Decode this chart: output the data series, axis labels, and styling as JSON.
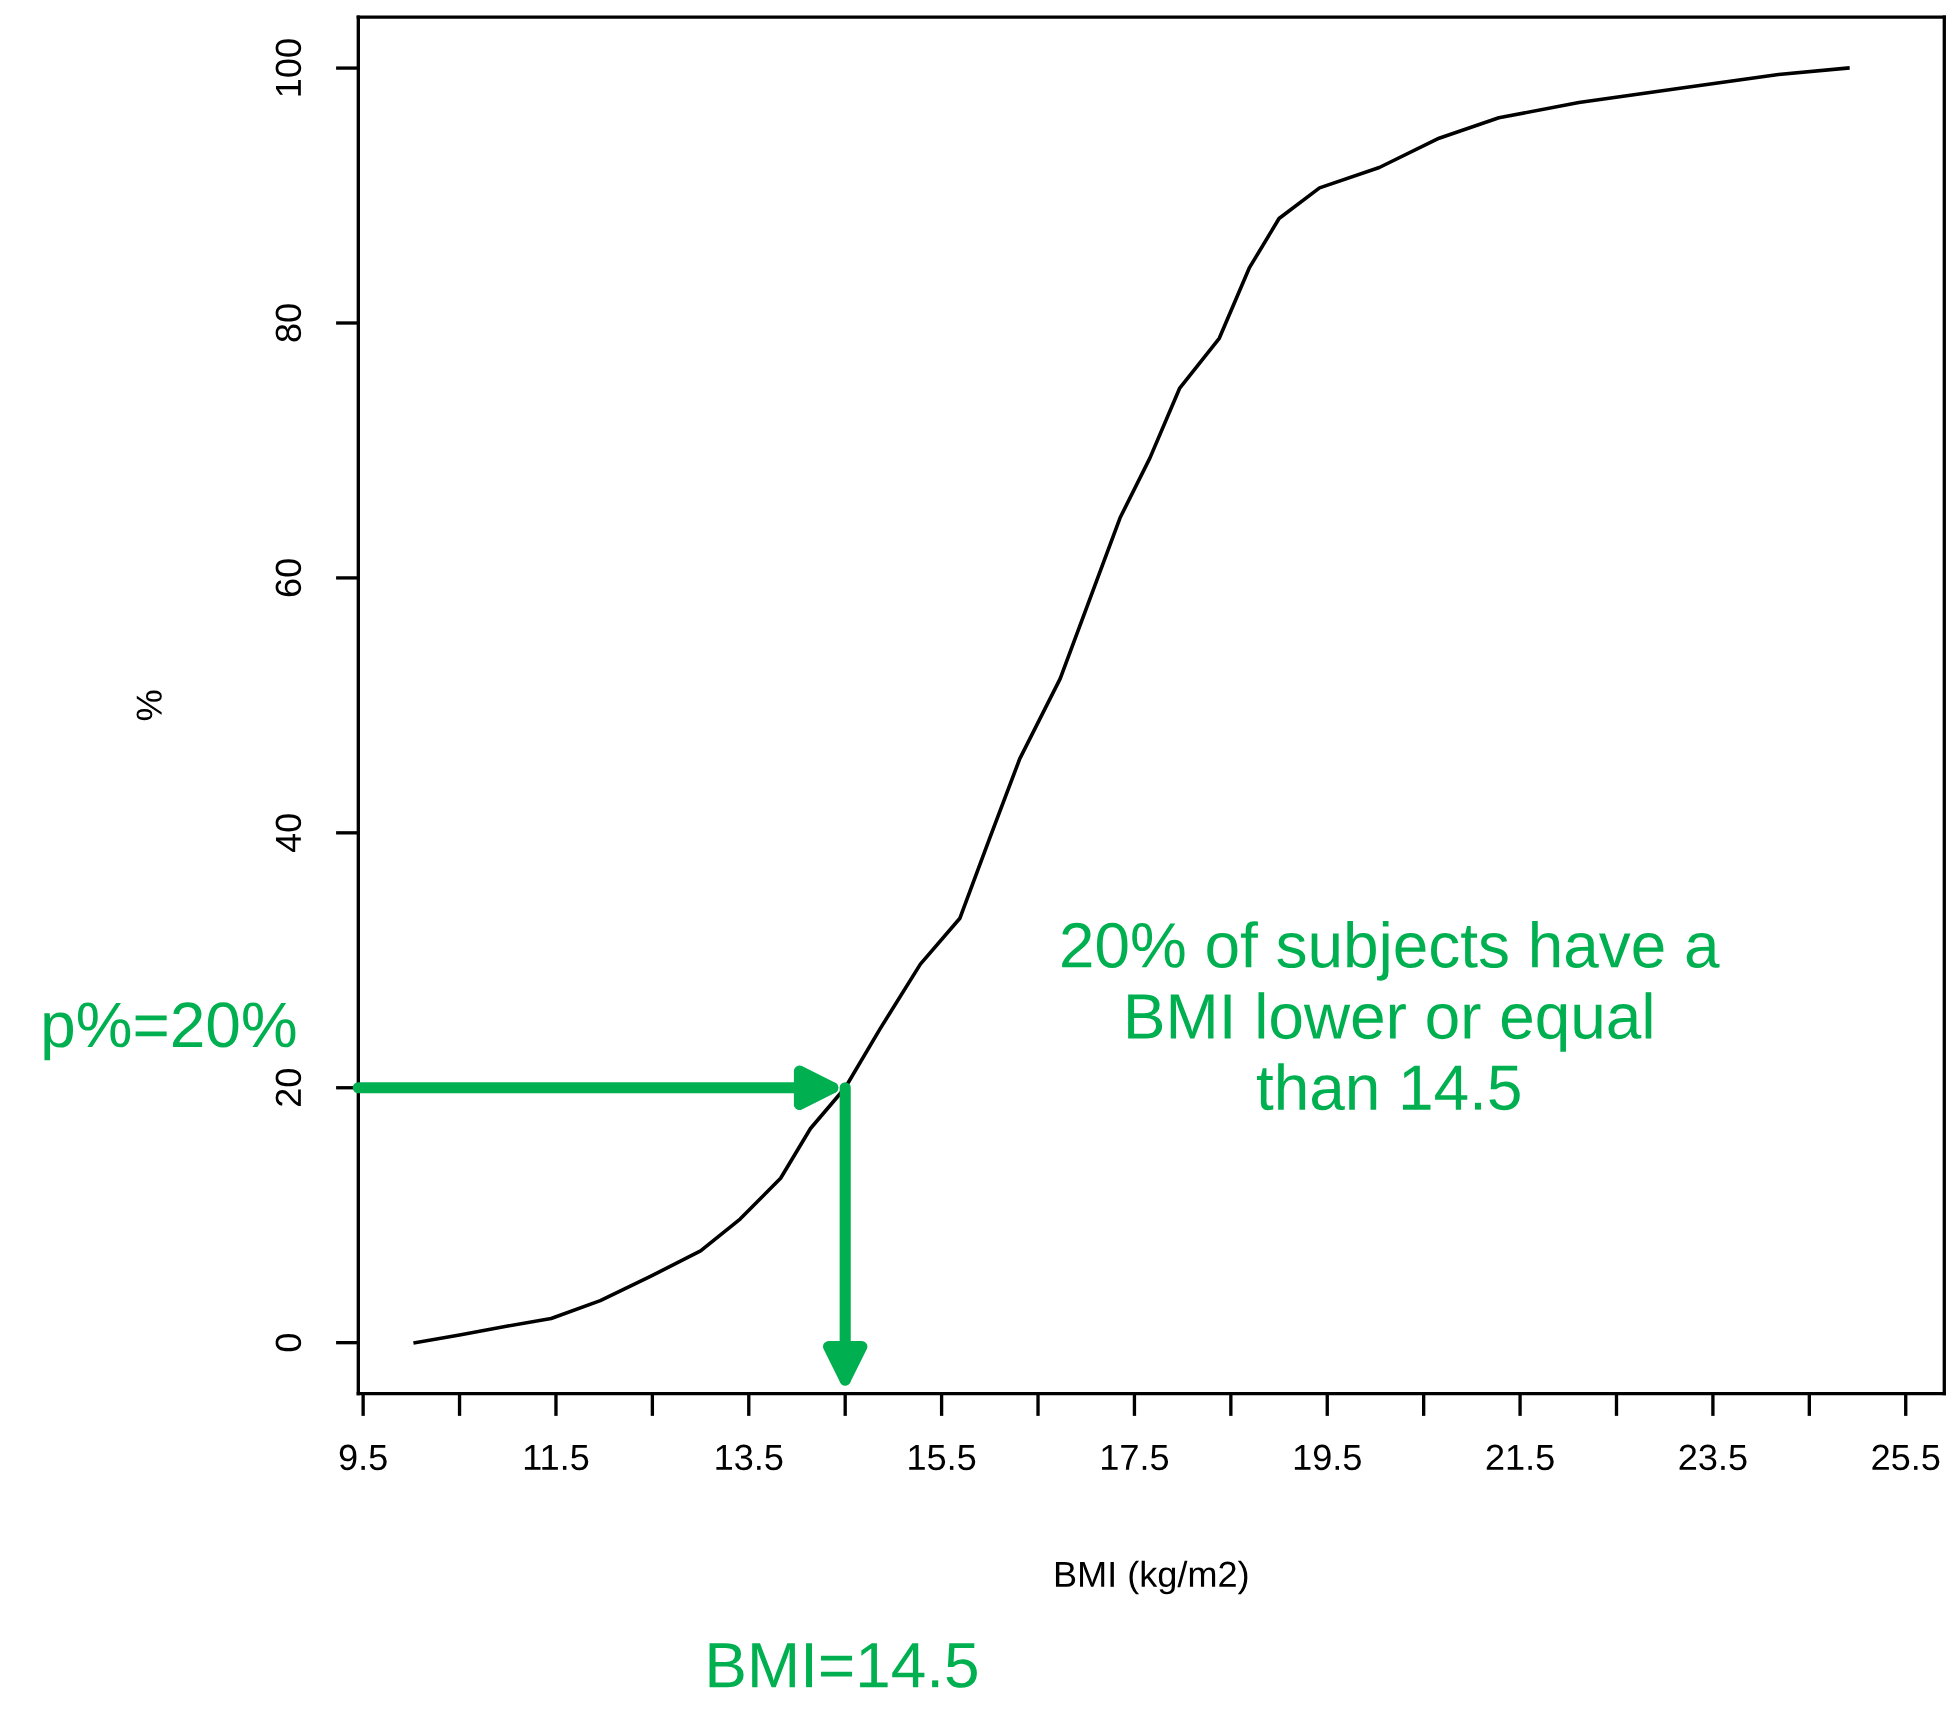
{
  "chart_data": {
    "type": "line",
    "xlabel": "BMI (kg/m2)",
    "ylabel": "%",
    "x": [
      10.04,
      10.5,
      11.0,
      11.45,
      11.96,
      12.48,
      13.0,
      13.41,
      13.83,
      14.14,
      14.5,
      14.86,
      15.28,
      15.69,
      16.0,
      16.31,
      16.73,
      17.04,
      17.35,
      17.66,
      17.97,
      18.38,
      18.69,
      19.0,
      19.42,
      20.04,
      20.66,
      21.28,
      22.11,
      23.14,
      24.18,
      24.9
    ],
    "series": [
      {
        "color": "#000000",
        "values": [
          0,
          0.6,
          1.3,
          1.9,
          3.3,
          5.2,
          7.2,
          9.7,
          12.9,
          16.8,
          20,
          24.6,
          29.7,
          33.3,
          39.6,
          45.8,
          52.1,
          58.4,
          64.7,
          69.4,
          74.9,
          78.8,
          84.3,
          88.2,
          90.6,
          92.2,
          94.5,
          96.1,
          97.3,
          98.4,
          99.5,
          100
        ]
      }
    ],
    "xlim": [
      9.45,
      25.9
    ],
    "ylim": [
      -4,
      104
    ],
    "xticks": [
      9.5,
      {
        "value": 10.5,
        "label": null
      },
      11.5,
      {
        "value": 12.5,
        "label": null
      },
      13.5,
      {
        "value": 14.5,
        "label": null
      },
      15.5,
      {
        "value": 16.5,
        "label": null
      },
      17.5,
      {
        "value": 18.5,
        "label": null
      },
      19.5,
      {
        "value": 20.5,
        "label": null
      },
      21.5,
      {
        "value": 22.5,
        "label": null
      },
      23.5,
      {
        "value": 24.5,
        "label": null
      },
      25.5
    ],
    "yticks": [
      0,
      20,
      40,
      60,
      80,
      100
    ],
    "grid": false,
    "legend": false,
    "annotations": [
      {
        "text": "p%=20%",
        "x": 14.5,
        "y": 20
      },
      "BMI=14.5",
      "20% of subjects have a\nBMI lower or equal\nthan 14.5"
    ]
  }
}
